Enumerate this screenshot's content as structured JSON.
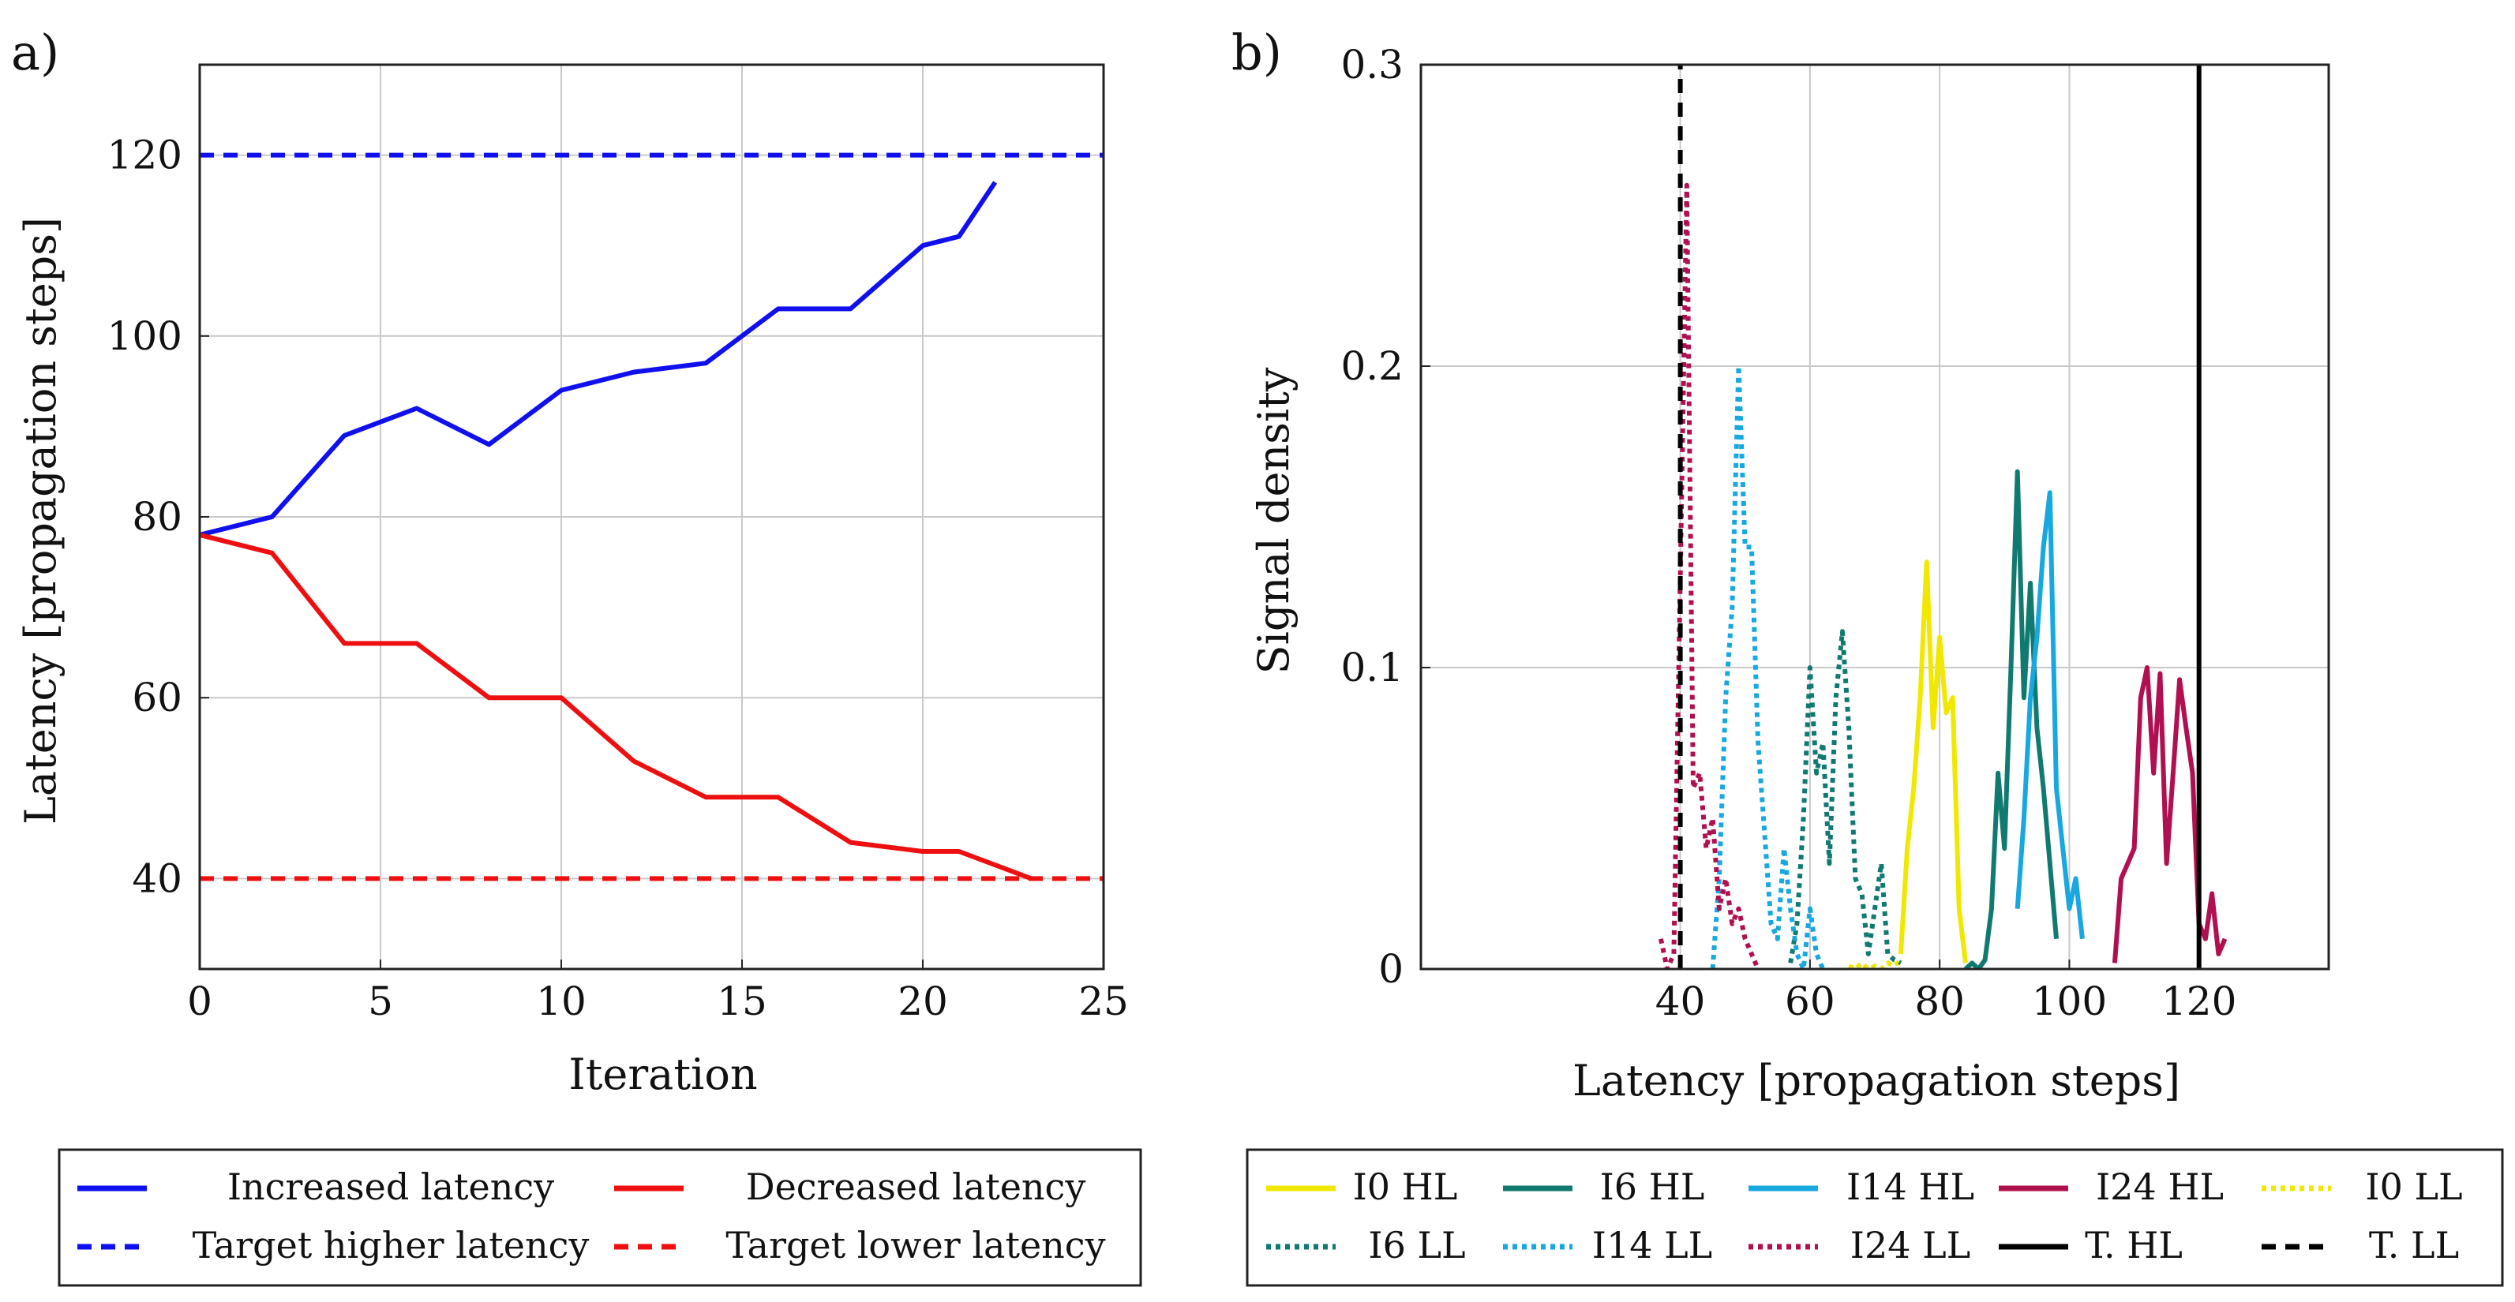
{
  "chart_data": [
    {
      "panel_label": "a)",
      "type": "line",
      "xlabel": "Iteration",
      "ylabel": "Latency [propagation steps]",
      "xlim": [
        0,
        25
      ],
      "ylim": [
        30,
        130
      ],
      "xticks": [
        0,
        5,
        10,
        15,
        20,
        25
      ],
      "yticks": [
        40,
        60,
        80,
        100,
        120
      ],
      "grid": true,
      "legend_position": "below",
      "series": [
        {
          "name": "Increased latency",
          "color": "#1010ee",
          "style": "solid",
          "x": [
            0,
            2,
            4,
            6,
            8,
            10,
            12,
            14,
            16,
            18,
            20,
            21,
            22
          ],
          "y": [
            78,
            80,
            89,
            92,
            88,
            94,
            96,
            97,
            103,
            103,
            110,
            111,
            117
          ]
        },
        {
          "name": "Decreased latency",
          "color": "#ee1010",
          "style": "solid",
          "x": [
            0,
            2,
            4,
            6,
            8,
            10,
            12,
            14,
            16,
            18,
            20,
            21,
            23
          ],
          "y": [
            78,
            76,
            66,
            66,
            60,
            60,
            53,
            49,
            49,
            44,
            43,
            43,
            40
          ]
        },
        {
          "name": "Target higher latency",
          "color": "#1010ee",
          "style": "dashed",
          "x": [
            0,
            25
          ],
          "y": [
            120,
            120
          ]
        },
        {
          "name": "Target lower latency",
          "color": "#ee1010",
          "style": "dashed",
          "x": [
            0,
            25
          ],
          "y": [
            40,
            40
          ]
        }
      ]
    },
    {
      "panel_label": "b)",
      "type": "line",
      "xlabel": "Latency [propagation steps]",
      "ylabel": "Signal density",
      "xlim": [
        0,
        140
      ],
      "ylim": [
        0,
        0.3
      ],
      "xticks": [
        40,
        60,
        80,
        100,
        120
      ],
      "yticks": [
        0,
        0.1,
        0.2,
        0.3
      ],
      "ytick_labels": [
        "0",
        "0.1",
        "0.2",
        "0.3"
      ],
      "grid": true,
      "legend_position": "below",
      "series": [
        {
          "name": "I0 HL",
          "color": "#f0e800",
          "style": "solid",
          "x": [
            74,
            75,
            76,
            77,
            78,
            79,
            80,
            81,
            82,
            83,
            84
          ],
          "y": [
            0.005,
            0.04,
            0.06,
            0.09,
            0.135,
            0.08,
            0.11,
            0.085,
            0.09,
            0.02,
            0.002
          ]
        },
        {
          "name": "I6 HL",
          "color": "#117a70",
          "style": "solid",
          "x": [
            84,
            85,
            86,
            87,
            88,
            89,
            90,
            91,
            92,
            93,
            94,
            95,
            96,
            97,
            98
          ],
          "y": [
            0.0,
            0.002,
            0.0,
            0.003,
            0.02,
            0.065,
            0.04,
            0.1,
            0.165,
            0.09,
            0.128,
            0.08,
            0.06,
            0.035,
            0.01
          ]
        },
        {
          "name": "I14 HL",
          "color": "#18a8e0",
          "style": "solid",
          "x": [
            92,
            93,
            94,
            95,
            96,
            97,
            98,
            99,
            100,
            101,
            102
          ],
          "y": [
            0.02,
            0.05,
            0.09,
            0.11,
            0.14,
            0.158,
            0.06,
            0.04,
            0.02,
            0.03,
            0.01
          ]
        },
        {
          "name": "I24 HL",
          "color": "#b01050",
          "style": "solid",
          "x": [
            107,
            108,
            109,
            110,
            111,
            112,
            113,
            114,
            115,
            116,
            117,
            118,
            119,
            120,
            121,
            122,
            123,
            124
          ],
          "y": [
            0.002,
            0.03,
            0.035,
            0.04,
            0.09,
            0.1,
            0.065,
            0.098,
            0.035,
            0.065,
            0.096,
            0.08,
            0.065,
            0.015,
            0.01,
            0.025,
            0.005,
            0.01
          ]
        },
        {
          "name": "I0 LL",
          "color": "#f0e800",
          "style": "dotted",
          "x": [
            66,
            67,
            68,
            69,
            70,
            71,
            72,
            73,
            74
          ],
          "y": [
            0.001,
            0.0,
            0.002,
            0.0,
            0.001,
            0.0,
            0.002,
            0.001,
            0.003
          ]
        },
        {
          "name": "I6 LL",
          "color": "#117a70",
          "style": "dotted",
          "x": [
            57,
            58,
            59,
            60,
            61,
            62,
            63,
            64,
            65,
            66,
            67,
            68,
            69,
            70,
            71,
            72,
            73,
            74
          ],
          "y": [
            0.002,
            0.015,
            0.05,
            0.1,
            0.065,
            0.075,
            0.035,
            0.09,
            0.112,
            0.08,
            0.03,
            0.025,
            0.005,
            0.02,
            0.035,
            0.005,
            0.003,
            0.002
          ]
        },
        {
          "name": "I14 LL",
          "color": "#18a8e0",
          "style": "dotted",
          "x": [
            45,
            46,
            47,
            48,
            49,
            50,
            51,
            52,
            53,
            54,
            55,
            56,
            57,
            58,
            59,
            60,
            61,
            62
          ],
          "y": [
            0.0,
            0.03,
            0.09,
            0.12,
            0.2,
            0.14,
            0.14,
            0.075,
            0.045,
            0.015,
            0.01,
            0.04,
            0.02,
            0.005,
            0.0,
            0.02,
            0.005,
            0.0
          ]
        },
        {
          "name": "I24 LL",
          "color": "#b01050",
          "style": "dotted",
          "x": [
            37,
            38,
            39,
            40,
            41,
            42,
            43,
            44,
            45,
            46,
            47,
            48,
            49,
            50,
            51,
            52
          ],
          "y": [
            0.01,
            0.0,
            0.005,
            0.13,
            0.26,
            0.06,
            0.065,
            0.04,
            0.05,
            0.02,
            0.03,
            0.015,
            0.02,
            0.01,
            0.005,
            0.0
          ]
        },
        {
          "name": "T. HL",
          "color": "#000000",
          "style": "solid",
          "x": [
            120,
            120
          ],
          "y": [
            0,
            0.3
          ]
        },
        {
          "name": "T. LL",
          "color": "#000000",
          "style": "dashed",
          "x": [
            40,
            40
          ],
          "y": [
            0,
            0.3
          ]
        }
      ]
    }
  ]
}
